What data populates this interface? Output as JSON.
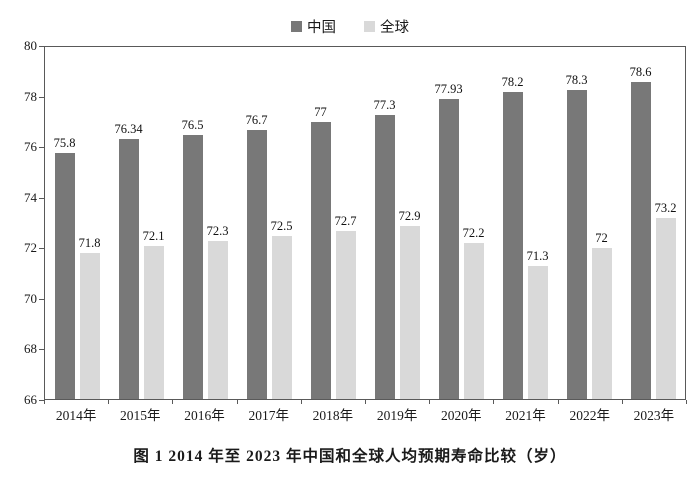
{
  "caption": "图 1  2014 年至 2023 年中国和全球人均预期寿命比较（岁）",
  "legend": {
    "items": [
      {
        "label": "中国",
        "color": "#787878"
      },
      {
        "label": "全球",
        "color": "#d9d9d9"
      }
    ]
  },
  "chart_data": {
    "type": "bar",
    "title": "图 1  2014 年至 2023 年中国和全球人均预期寿命比较（岁）",
    "categories": [
      "2014年",
      "2015年",
      "2016年",
      "2017年",
      "2018年",
      "2019年",
      "2020年",
      "2021年",
      "2022年",
      "2023年"
    ],
    "series": [
      {
        "name": "中国",
        "color": "#787878",
        "values": [
          75.8,
          76.34,
          76.5,
          76.7,
          77,
          77.3,
          77.93,
          78.2,
          78.3,
          78.6
        ]
      },
      {
        "name": "全球",
        "color": "#d9d9d9",
        "values": [
          71.8,
          72.1,
          72.3,
          72.5,
          72.7,
          72.9,
          72.2,
          71.3,
          72,
          73.2
        ]
      }
    ],
    "xlabel": "",
    "ylabel": "",
    "ylim": [
      66,
      80
    ],
    "yticks": [
      66,
      68,
      70,
      72,
      74,
      76,
      78,
      80
    ],
    "grid": false,
    "legend_position": "top"
  }
}
